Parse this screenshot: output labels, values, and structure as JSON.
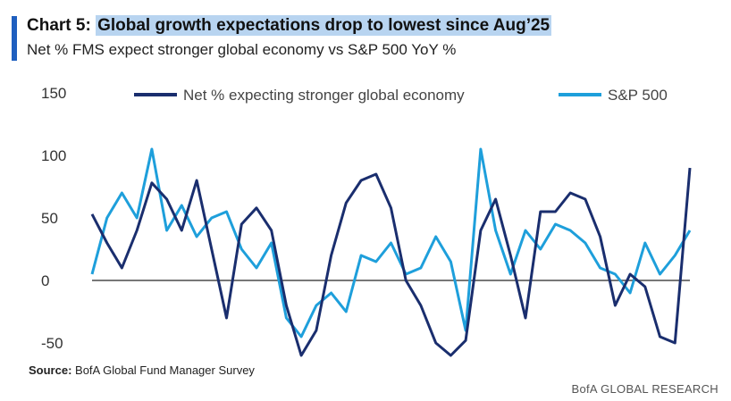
{
  "header": {
    "chart_label": "Chart 5:",
    "title": "Global growth expectations drop to lowest since Aug’25",
    "subtitle": "Net % FMS expect stronger global economy vs S&P 500 YoY %"
  },
  "footer": {
    "source_label": "Source:",
    "source_text": "BofA Global Fund Manager Survey",
    "brand": "BofA GLOBAL RESEARCH"
  },
  "colors": {
    "series1": "#1a2e6e",
    "series2": "#1e9fdb",
    "accent": "#1f5fbf",
    "highlight": "#b8d4f0"
  },
  "chart_data": {
    "type": "line",
    "title": "Global growth expectations drop to lowest since Aug’25",
    "xlabel": "",
    "ylabel": "",
    "ylim": [
      -60,
      150
    ],
    "yticks": [
      -50,
      0,
      50,
      100,
      150
    ],
    "ytick_labels": [
      "-50",
      "0",
      "50",
      "100",
      "150"
    ],
    "n_points": 41,
    "series": [
      {
        "name": "Net % expecting stronger global economy",
        "values": [
          53,
          30,
          10,
          40,
          78,
          65,
          40,
          80,
          25,
          -30,
          45,
          58,
          40,
          -20,
          -60,
          -40,
          20,
          62,
          80,
          85,
          58,
          0,
          -20,
          -50,
          -60,
          -48,
          40,
          65,
          20,
          -30,
          55,
          55,
          70,
          65,
          35,
          -20,
          5,
          -5,
          -45,
          -50,
          90
        ]
      },
      {
        "name": "S&P 500",
        "values": [
          5,
          50,
          70,
          50,
          105,
          40,
          60,
          35,
          50,
          55,
          25,
          10,
          30,
          -30,
          -45,
          -20,
          -10,
          -25,
          20,
          15,
          30,
          5,
          10,
          35,
          15,
          -40,
          105,
          40,
          5,
          40,
          25,
          45,
          40,
          30,
          10,
          5,
          -10,
          30,
          5,
          20,
          40
        ]
      }
    ],
    "legend_position": "top"
  }
}
